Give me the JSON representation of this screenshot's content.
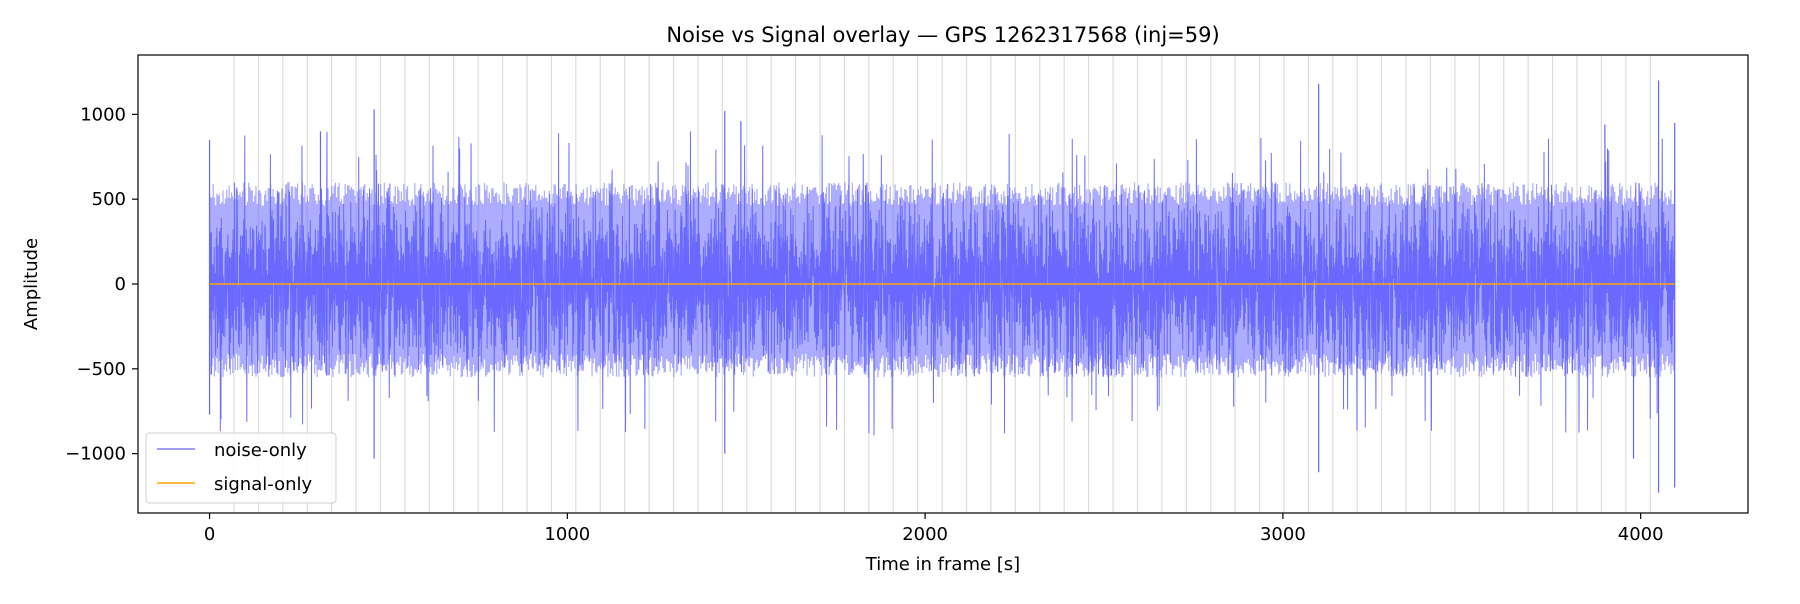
{
  "chart_data": {
    "type": "line",
    "title": "Noise vs Signal overlay — GPS 1262317568 (inj=59)",
    "xlabel": "Time in frame [s]",
    "ylabel": "Amplitude",
    "xlim": [
      -200,
      4300
    ],
    "ylim": [
      -1350,
      1350
    ],
    "x_ticks": [
      0,
      1000,
      2000,
      3000,
      4000
    ],
    "x_tick_labels": [
      "0",
      "1000",
      "2000",
      "3000",
      "4000"
    ],
    "y_ticks": [
      -1000,
      -500,
      0,
      500,
      1000
    ],
    "y_tick_labels": [
      "−1000",
      "−500",
      "0",
      "500",
      "1000"
    ],
    "grid": "vertical lines only",
    "legend_position": "lower-left",
    "x_range": [
      0,
      4095
    ],
    "injection_count": 59,
    "series": [
      {
        "name": "noise-only",
        "color": "#6666ff",
        "typical_envelope": [
          -550,
          600
        ],
        "peaks": [
          {
            "x": 0,
            "y": 850
          },
          {
            "x": 310,
            "y": 900
          },
          {
            "x": 460,
            "y": 1030
          },
          {
            "x": 1440,
            "y": 1020
          },
          {
            "x": 1485,
            "y": 960
          },
          {
            "x": 3100,
            "y": 1180
          },
          {
            "x": 3900,
            "y": 940
          },
          {
            "x": 4050,
            "y": 1200
          },
          {
            "x": 4095,
            "y": 950
          }
        ],
        "troughs": [
          {
            "x": 0,
            "y": -770
          },
          {
            "x": 460,
            "y": -1030
          },
          {
            "x": 1440,
            "y": -1000
          },
          {
            "x": 3100,
            "y": -1110
          },
          {
            "x": 3980,
            "y": -1030
          },
          {
            "x": 4050,
            "y": -1230
          },
          {
            "x": 4095,
            "y": -1200
          }
        ]
      },
      {
        "name": "signal-only",
        "color": "#ffa500",
        "x": [
          0,
          4095
        ],
        "y": [
          0,
          0
        ]
      }
    ]
  }
}
